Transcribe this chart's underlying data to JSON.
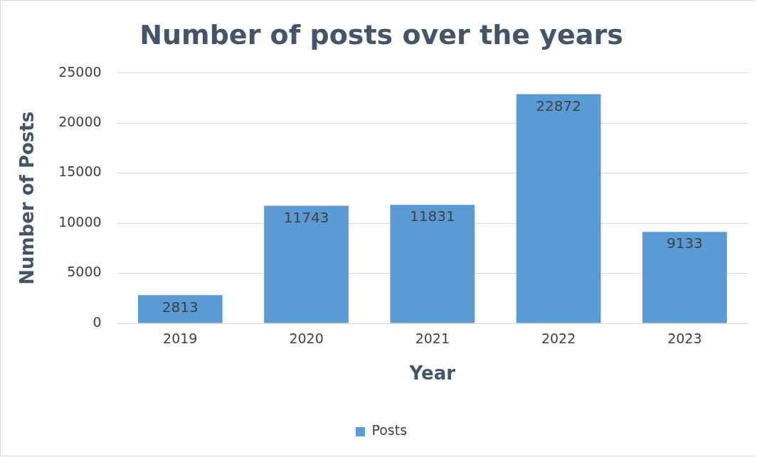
{
  "chart_data": {
    "type": "bar",
    "title": "Number of posts over the years",
    "xlabel": "Year",
    "ylabel": "Number of Posts",
    "categories": [
      "2019",
      "2020",
      "2021",
      "2022",
      "2023"
    ],
    "series": [
      {
        "name": "Posts",
        "color": "#5b9bd5",
        "values": [
          2813,
          11743,
          11831,
          22872,
          9133
        ]
      }
    ],
    "ylim": [
      0,
      25000
    ],
    "yticks": [
      0,
      5000,
      10000,
      15000,
      20000,
      25000
    ],
    "grid": "y",
    "legend": "bottom",
    "data_labels": true
  }
}
